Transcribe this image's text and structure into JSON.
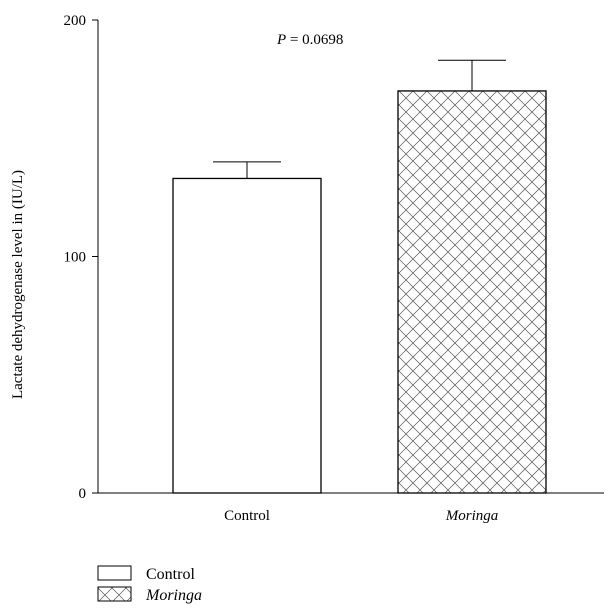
{
  "chart_data": {
    "type": "bar",
    "categories": [
      "Control",
      "Moringa"
    ],
    "category_italic": [
      false,
      true
    ],
    "values": [
      133,
      170
    ],
    "errors": [
      7,
      13
    ],
    "patterns": [
      "none",
      "crosshatch"
    ],
    "ylabel": "Lactate dehydrogenase level in (IU/L)",
    "ylim": [
      0,
      200
    ],
    "yticks": [
      0,
      100,
      200
    ],
    "annotation": {
      "prefix": "P",
      "value": " = 0.0698"
    },
    "legend": {
      "placement": "bottom-left",
      "entries": [
        {
          "label": "Control",
          "pattern": "none",
          "italic": false
        },
        {
          "label": "Moringa",
          "pattern": "crosshatch",
          "italic": true
        }
      ]
    }
  }
}
